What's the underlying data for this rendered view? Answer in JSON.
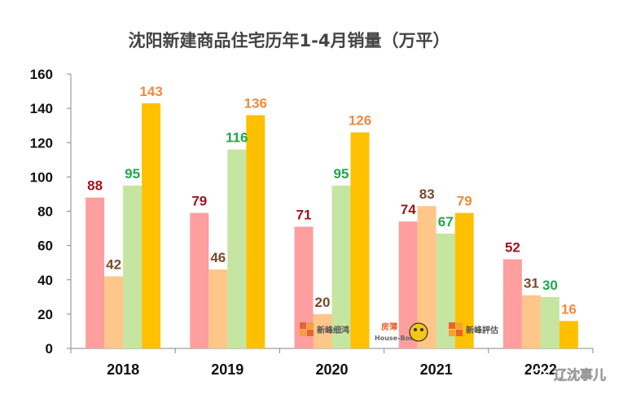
{
  "chart_data": {
    "type": "bar",
    "title": "沈阳新建商品住宅历年1-4月销量（万平）",
    "categories": [
      "2018",
      "2019",
      "2020",
      "2021",
      "2022"
    ],
    "series": [
      {
        "values": [
          88,
          79,
          71,
          74,
          52
        ],
        "color": "#FF9E9E",
        "label_color": "#A0141E"
      },
      {
        "values": [
          42,
          46,
          20,
          83,
          31
        ],
        "color": "#FFC68A",
        "label_color": "#7B4A2A"
      },
      {
        "values": [
          95,
          116,
          95,
          67,
          30
        ],
        "color": "#C5E5A0",
        "label_color": "#1EA84A"
      },
      {
        "values": [
          143,
          136,
          126,
          79,
          16
        ],
        "color": "#FFC000",
        "label_color": "#F08A3C"
      }
    ],
    "ylim": [
      0,
      160
    ],
    "yticks": [
      0,
      20,
      40,
      60,
      80,
      100,
      120,
      140,
      160
    ],
    "grid": false
  },
  "watermarks": {
    "logo1_name": "新峰细鸿",
    "logo2_name": "房薄",
    "logo2_sub": "House-Book",
    "logo3_name": "新峰評估",
    "wechat_account": "辽沈事儿"
  }
}
